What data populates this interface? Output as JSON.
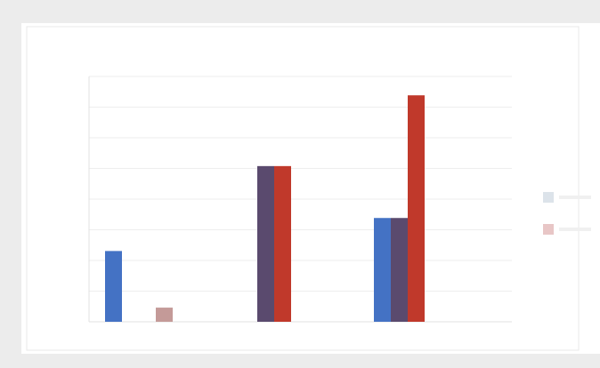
{
  "chart_data": {
    "type": "bar",
    "title": "",
    "xlabel": "",
    "ylabel": "",
    "categories": [
      "",
      "",
      ""
    ],
    "ylim": [
      0,
      260
    ],
    "grid": true,
    "legend_position": "right",
    "series": [
      {
        "values": [
          75,
          0,
          110
        ],
        "color": "#4472c4"
      },
      {
        "values": [
          0,
          165,
          110
        ],
        "color": "#5a4a6e"
      },
      {
        "values": [
          0,
          165,
          240
        ],
        "color": "#c0392b"
      },
      {
        "values": [
          15,
          0,
          0
        ],
        "color": "#c49a98"
      }
    ]
  }
}
